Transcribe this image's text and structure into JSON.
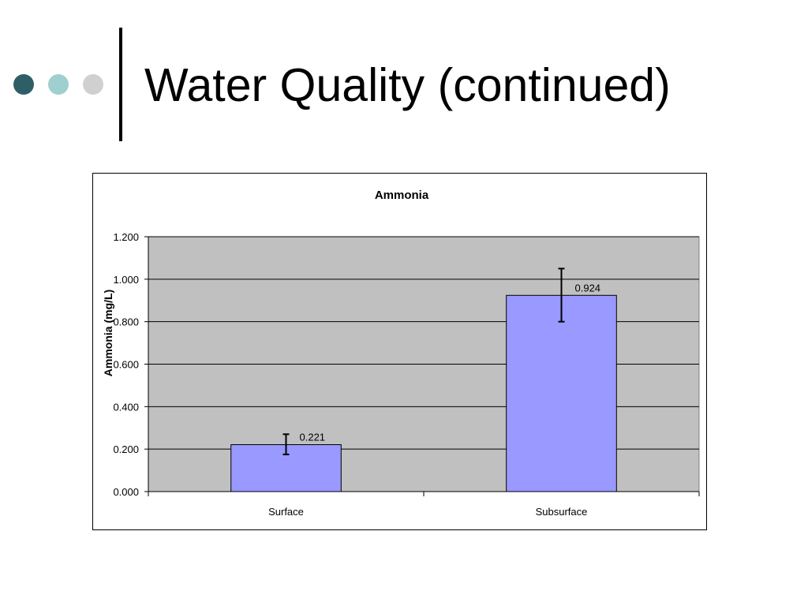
{
  "slide": {
    "title": "Water Quality (continued)",
    "accent_dots": [
      "#2f5f66",
      "#9fcfcf",
      "#d0d0d0"
    ]
  },
  "chart_data": {
    "type": "bar",
    "title": "Ammonia",
    "xlabel": "",
    "ylabel": "Ammonia  (mg/L)",
    "categories": [
      "Surface",
      "Subsurface"
    ],
    "series": [
      {
        "values": [
          0.221,
          0.924
        ],
        "data_labels": [
          "0.221",
          "0.924"
        ],
        "error": [
          [
            0.175,
            0.27
          ],
          [
            0.8,
            1.05
          ]
        ]
      }
    ],
    "ylim": [
      0,
      1.2
    ],
    "yticks": [
      0,
      0.2,
      0.4,
      0.6,
      0.8,
      1.0,
      1.2
    ],
    "ytick_labels": [
      "0.000",
      "0.200",
      "0.400",
      "0.600",
      "0.800",
      "1.000",
      "1.200"
    ],
    "grid": true,
    "legend": "none",
    "colors": {
      "plot_background": "#c0c0c0",
      "bar_fill": "#9999ff",
      "bar_stroke": "#000000",
      "gridline": "#000000"
    }
  }
}
